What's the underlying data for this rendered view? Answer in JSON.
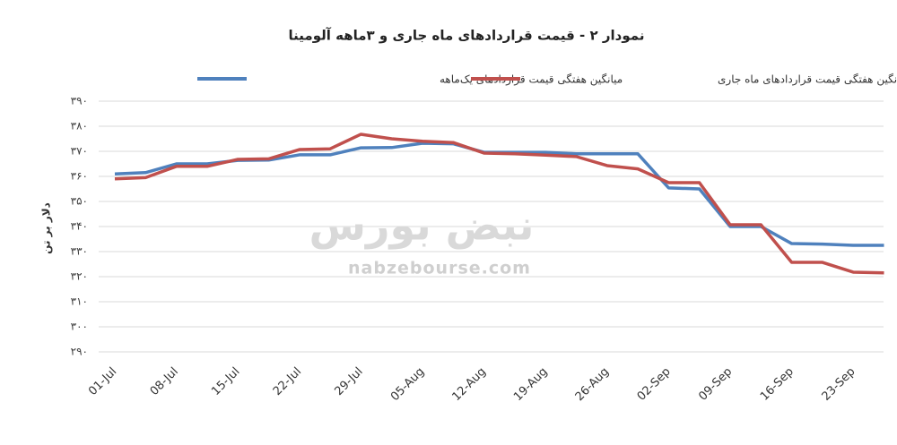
{
  "chart_data": {
    "type": "line",
    "title": "نمودار ۲ - قیمت قراردادهای ماه جاری و ۳ماهه آلومینا",
    "watermark": [
      "نبض بورس",
      "nabzebourse.com"
    ],
    "y_axis_title": "دلار بر تن",
    "categories": [
      "01-Jul",
      null,
      "08-Jul",
      null,
      "15-Jul",
      null,
      "22-Jul",
      null,
      "29-Jul",
      null,
      "05-Aug",
      null,
      "12-Aug",
      null,
      "19-Aug",
      null,
      "26-Aug",
      null,
      "02-Sep",
      null,
      "09-Sep",
      null,
      "16-Sep",
      null,
      "23-Sep",
      null
    ],
    "series": [
      {
        "name": "میانگین هفتگی قیمت قراردادهای یک‌ماهه",
        "color": "#4f81bd",
        "values": [
          361,
          361.5,
          365,
          365,
          366.4,
          366.5,
          368.6,
          368.6,
          371.4,
          371.5,
          373.2,
          373,
          369.6,
          369.6,
          369.6,
          369,
          369,
          369,
          355.4,
          355,
          340,
          340,
          333.2,
          333,
          332.5,
          332.5
        ]
      },
      {
        "name": "میانگین هفتگی قیمت قراردادهای ماه جاری",
        "color": "#c0504d",
        "values": [
          359,
          359.5,
          364,
          364,
          366.8,
          367,
          370.7,
          371,
          376.8,
          375,
          374,
          373.5,
          369.3,
          369,
          368.5,
          367.9,
          364.3,
          363,
          357.5,
          357.5,
          340.7,
          340.7,
          325.7,
          325.7,
          321.8,
          321.5
        ]
      }
    ],
    "ylim": [
      290,
      390
    ],
    "yticks": [
      {
        "value": 290,
        "label": "۲۹۰"
      },
      {
        "value": 300,
        "label": "۳۰۰"
      },
      {
        "value": 310,
        "label": "۳۱۰"
      },
      {
        "value": 320,
        "label": "۳۲۰"
      },
      {
        "value": 330,
        "label": "۳۳۰"
      },
      {
        "value": 340,
        "label": "۳۴۰"
      },
      {
        "value": 350,
        "label": "۳۵۰"
      },
      {
        "value": 360,
        "label": "۳۶۰"
      },
      {
        "value": 370,
        "label": "۳۷۰"
      },
      {
        "value": 380,
        "label": "۳۸۰"
      },
      {
        "value": 390,
        "label": "۳۹۰"
      }
    ],
    "grid": true,
    "legend": "top"
  }
}
